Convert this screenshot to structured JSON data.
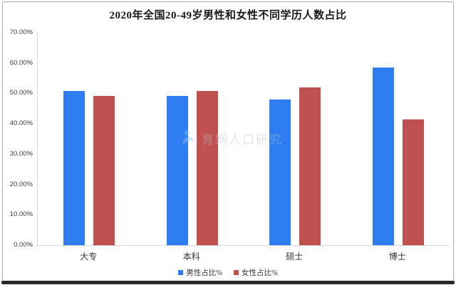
{
  "window": {
    "border_color": "#a9a9a9",
    "bottom_edge_color": "#2a2a2a"
  },
  "watermark": {
    "text": "育娲人口研究",
    "icon": "yuwa-logo-icon",
    "icon_color": "#9ec2e6"
  },
  "chart_data": {
    "type": "bar",
    "title": "2020年全国20-49岁男性和女性不同学历人数占比",
    "categories": [
      "大专",
      "本科",
      "硕士",
      "博士"
    ],
    "series": [
      {
        "name": "男性占比%",
        "color": "#2e7ef2",
        "values": [
          50.9,
          49.1,
          48.0,
          58.6
        ]
      },
      {
        "name": "女性占比%",
        "color": "#bf5150",
        "values": [
          49.1,
          50.9,
          52.0,
          41.4
        ]
      }
    ],
    "xlabel": "",
    "ylabel": "",
    "ylim": [
      0,
      70
    ],
    "y_ticks": [
      {
        "value": 70,
        "label": "70.00%"
      },
      {
        "value": 60,
        "label": "60.00%"
      },
      {
        "value": 50,
        "label": "50.00%"
      },
      {
        "value": 40,
        "label": "40.00%"
      },
      {
        "value": 30,
        "label": "30.00%"
      },
      {
        "value": 20,
        "label": "20.00%"
      },
      {
        "value": 10,
        "label": "10.00%"
      },
      {
        "value": 0,
        "label": "0.00%"
      }
    ],
    "grid": false,
    "legend_position": "bottom"
  }
}
